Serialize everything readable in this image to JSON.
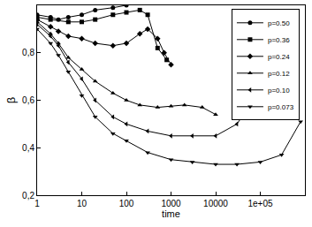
{
  "chart_data": {
    "type": "line",
    "x_label": "time",
    "y_label": "β",
    "log": "x",
    "legend": "upper right",
    "xlim": [
      1,
      1000000
    ],
    "xticks": [
      1,
      10,
      100,
      1000,
      10000,
      {
        "value": 100000,
        "label": "1e+05"
      }
    ],
    "ylim": [
      0.2,
      1.0
    ],
    "yticks": [
      {
        "value": 0.2,
        "label": "0,2"
      },
      {
        "value": 0.4,
        "label": "0,4"
      },
      {
        "value": 0.6,
        "label": "0,6"
      },
      {
        "value": 0.8,
        "label": "0,8"
      }
    ],
    "series": [
      {
        "name": "p=0.50",
        "color": "#000000",
        "marker": "circle",
        "x": [
          1,
          2,
          3,
          5,
          10,
          20,
          50,
          100
        ],
        "values": [
          0.96,
          0.95,
          0.94,
          0.95,
          0.96,
          0.98,
          0.99,
          1.0
        ]
      },
      {
        "name": "p=0.36",
        "color": "#000000",
        "marker": "square",
        "x": [
          1,
          2,
          5,
          10,
          20,
          50,
          100,
          200,
          300,
          500,
          800
        ],
        "values": [
          0.95,
          0.94,
          0.93,
          0.93,
          0.94,
          0.96,
          0.97,
          0.98,
          0.96,
          0.82,
          0.77
        ]
      },
      {
        "name": "p=0.24",
        "color": "#000000",
        "marker": "diamond",
        "x": [
          1,
          2,
          3,
          5,
          10,
          20,
          50,
          100,
          200,
          300,
          500,
          700,
          1000
        ],
        "values": [
          0.94,
          0.91,
          0.89,
          0.87,
          0.86,
          0.84,
          0.83,
          0.84,
          0.88,
          0.9,
          0.86,
          0.8,
          0.75
        ]
      },
      {
        "name": "p=0.12",
        "color": "#000000",
        "marker": "triangle-up",
        "x": [
          1,
          2,
          3,
          5,
          10,
          20,
          50,
          100,
          200,
          500,
          1000,
          2000,
          5000,
          10000
        ],
        "values": [
          0.93,
          0.88,
          0.84,
          0.78,
          0.73,
          0.68,
          0.63,
          0.6,
          0.58,
          0.57,
          0.575,
          0.58,
          0.57,
          0.54
        ]
      },
      {
        "name": "p=0.10",
        "color": "#000000",
        "marker": "triangle-left",
        "x": [
          1,
          2,
          3,
          5,
          10,
          20,
          50,
          100,
          300,
          1000,
          3000,
          10000,
          30000,
          50000
        ],
        "values": [
          0.92,
          0.87,
          0.83,
          0.76,
          0.69,
          0.6,
          0.53,
          0.5,
          0.47,
          0.45,
          0.45,
          0.45,
          0.5,
          0.56
        ]
      },
      {
        "name": "p=0.073",
        "color": "#000000",
        "marker": "triangle-down",
        "x": [
          1,
          2,
          3,
          5,
          10,
          20,
          50,
          100,
          300,
          1000,
          3000,
          10000,
          30000,
          100000,
          300000,
          800000
        ],
        "values": [
          0.9,
          0.84,
          0.79,
          0.72,
          0.62,
          0.53,
          0.46,
          0.43,
          0.38,
          0.35,
          0.34,
          0.33,
          0.33,
          0.34,
          0.37,
          0.51
        ]
      }
    ]
  }
}
